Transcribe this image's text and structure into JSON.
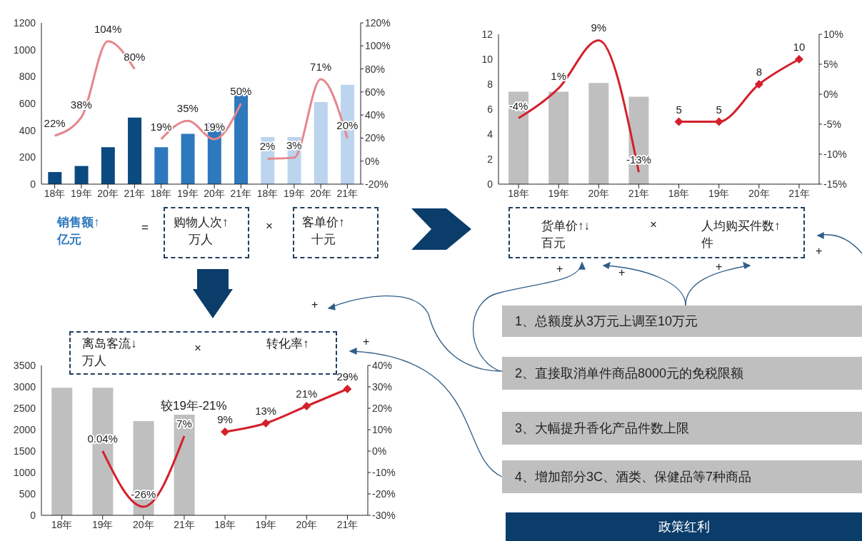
{
  "chart_data": [
    {
      "type": "bar",
      "categories": [
        "18年",
        "19年",
        "20年",
        "21年",
        "18年",
        "19年",
        "20年",
        "21年",
        "18年",
        "19年",
        "20年",
        "21年"
      ],
      "series": [
        {
          "type": "bar",
          "color": "#0b4a80",
          "values": [
            90,
            135,
            275,
            495,
            null,
            null,
            null,
            null,
            null,
            null,
            null,
            null
          ]
        },
        {
          "type": "bar",
          "color": "#2e78bd",
          "values": [
            null,
            null,
            null,
            null,
            275,
            375,
            455,
            675,
            null,
            null,
            null,
            null
          ]
        },
        {
          "type": "bar",
          "color": "#bcd4ee",
          "values": [
            null,
            null,
            null,
            null,
            null,
            null,
            null,
            null,
            350,
            350,
            610,
            740
          ]
        },
        {
          "type": "line",
          "axis": "y2",
          "color": "#e5868c",
          "marker": "none",
          "values": [
            22,
            38,
            104,
            80,
            null,
            null,
            null,
            null,
            null,
            null,
            null,
            null
          ],
          "value_labels": [
            "22%",
            "38%",
            "104%",
            "80%",
            null,
            null,
            null,
            null,
            null,
            null,
            null,
            null
          ]
        },
        {
          "type": "line",
          "axis": "y2",
          "color": "#e5868c",
          "marker": "none",
          "values": [
            null,
            null,
            null,
            null,
            19,
            35,
            19,
            50,
            null,
            null,
            null,
            null
          ],
          "value_labels": [
            null,
            null,
            null,
            null,
            "19%",
            "35%",
            "19%",
            "50%",
            null,
            null,
            null,
            null
          ]
        },
        {
          "type": "line",
          "axis": "y2",
          "color": "#e5868c",
          "marker": "none",
          "values": [
            null,
            null,
            null,
            null,
            null,
            null,
            null,
            null,
            2,
            3,
            71,
            20
          ],
          "value_labels": [
            null,
            null,
            null,
            null,
            null,
            null,
            null,
            null,
            "2%",
            "3%",
            "71%",
            "20%"
          ]
        }
      ],
      "ylim": [
        0,
        1200
      ],
      "yticks": [
        0,
        200,
        400,
        600,
        800,
        1000,
        1200
      ],
      "y2lim": [
        -20,
        120
      ],
      "y2ticks": [
        {
          "value": -20,
          "label": "-20%"
        },
        {
          "value": 0,
          "label": "0%"
        },
        {
          "value": 20,
          "label": "20%"
        },
        {
          "value": 40,
          "label": "40%"
        },
        {
          "value": 60,
          "label": "60%"
        },
        {
          "value": 80,
          "label": "80%"
        },
        {
          "value": 100,
          "label": "100%"
        },
        {
          "value": 120,
          "label": "120%"
        }
      ],
      "grid": false,
      "legend": false,
      "annotations": [
        "销售额↑\n亿元",
        "=",
        "购物人次↑\n万人",
        "×",
        "客单价↑\n十元"
      ]
    },
    {
      "type": "bar",
      "categories": [
        "18年",
        "19年",
        "20年",
        "21年",
        "18年",
        "19年",
        "20年",
        "21年"
      ],
      "series": [
        {
          "type": "bar",
          "color": "#bfbfbf",
          "values": [
            7.4,
            7.4,
            8.1,
            7.0,
            null,
            null,
            null,
            null
          ]
        },
        {
          "type": "line",
          "axis": "y2",
          "color": "#d4202c",
          "marker": "none",
          "values": [
            -4,
            1,
            9,
            -13,
            null,
            null,
            null,
            null
          ],
          "value_labels": [
            "-4%",
            "1%",
            "9%",
            "-13%",
            null,
            null,
            null,
            null
          ]
        },
        {
          "type": "line",
          "color": "#d4202c",
          "marker": "diamond",
          "values": [
            null,
            null,
            null,
            null,
            5,
            5,
            8,
            10
          ],
          "value_labels": [
            null,
            null,
            null,
            null,
            "5",
            "5",
            "8",
            "10"
          ]
        }
      ],
      "ylim": [
        0,
        12
      ],
      "yticks": [
        0,
        2,
        4,
        6,
        8,
        10,
        12
      ],
      "y2lim": [
        -15,
        10
      ],
      "y2ticks": [
        {
          "value": -15,
          "label": "-15%"
        },
        {
          "value": -10,
          "label": "-10%"
        },
        {
          "value": -5,
          "label": "-5%"
        },
        {
          "value": 0,
          "label": "0%"
        },
        {
          "value": 5,
          "label": "5%"
        },
        {
          "value": 10,
          "label": "10%"
        }
      ],
      "grid": false,
      "legend": false,
      "annotations": [
        "货单价↑↓\n百元",
        "×",
        "人均购买件数↑\n件"
      ]
    },
    {
      "type": "bar",
      "categories": [
        "18年",
        "19年",
        "20年",
        "21年",
        "18年",
        "19年",
        "20年",
        "21年"
      ],
      "series": [
        {
          "type": "bar",
          "color": "#bfbfbf",
          "values": [
            2980,
            2980,
            2200,
            2350,
            null,
            null,
            null,
            null
          ]
        },
        {
          "type": "line",
          "axis": "y2",
          "color": "#d4202c",
          "marker": "none",
          "values": [
            null,
            0.04,
            -26,
            7,
            null,
            null,
            null,
            null
          ],
          "value_labels": [
            null,
            "0.04%",
            "-26%",
            "7%",
            null,
            null,
            null,
            null
          ]
        },
        {
          "type": "line",
          "axis": "y2",
          "color": "#d4202c",
          "marker": "diamond",
          "values": [
            null,
            null,
            null,
            null,
            9,
            13,
            21,
            29
          ],
          "value_labels": [
            null,
            null,
            null,
            null,
            "9%",
            "13%",
            "21%",
            "29%"
          ]
        }
      ],
      "ylim": [
        0,
        3500
      ],
      "yticks": [
        0,
        500,
        1000,
        1500,
        2000,
        2500,
        3000,
        3500
      ],
      "y2lim": [
        -30,
        40
      ],
      "y2ticks": [
        {
          "value": -30,
          "label": "-30%"
        },
        {
          "value": -20,
          "label": "-20%"
        },
        {
          "value": -10,
          "label": "-10%"
        },
        {
          "value": 0,
          "label": "0%"
        },
        {
          "value": 10,
          "label": "10%"
        },
        {
          "value": 20,
          "label": "20%"
        },
        {
          "value": 30,
          "label": "30%"
        },
        {
          "value": 40,
          "label": "40%"
        }
      ],
      "grid": false,
      "legend": false,
      "annotations": [
        "离岛客流↓\n万人",
        "×",
        "转化率↑",
        "较19年-21%"
      ]
    },
    {
      "type": "other",
      "annotations": [
        "1、总额度从3万元上调至10万元",
        "2、直接取消单件商品8000元的免税限额",
        "3、大幅提升香化产品件数上限",
        "4、增加部分3C、酒类、保健品等7种商品",
        "政策红利",
        "+",
        "+",
        "+",
        "+",
        "+",
        "+"
      ]
    }
  ]
}
